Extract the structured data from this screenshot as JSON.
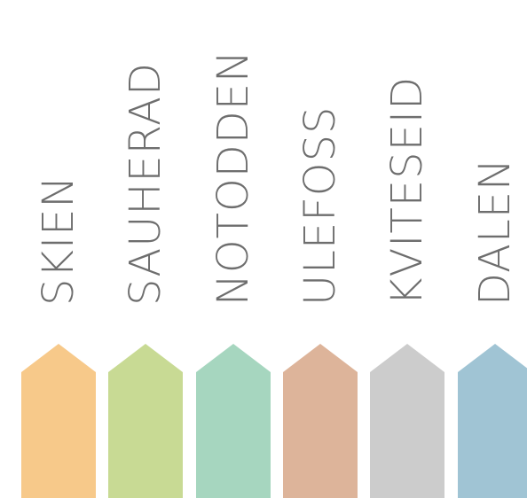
{
  "places": [
    {
      "name": "SKIEN",
      "color": "#F7C98A"
    },
    {
      "name": "SAUHERAD",
      "color": "#C8DA94"
    },
    {
      "name": "NOTODDEN",
      "color": "#A6D6BF"
    },
    {
      "name": "ULEFOSS",
      "color": "#DDB49A"
    },
    {
      "name": "KVITESEID",
      "color": "#CCCCCC"
    },
    {
      "name": "DALEN",
      "color": "#A0C4D4"
    }
  ]
}
